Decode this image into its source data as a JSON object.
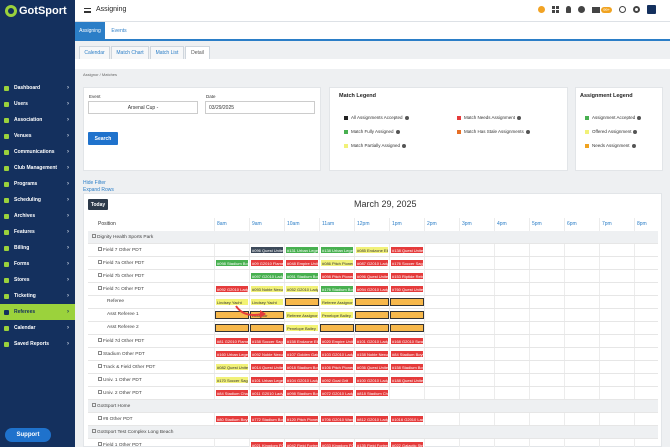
{
  "app": {
    "logo": "GotSport",
    "page_title": "Assigning",
    "mail_badge": "99+",
    "support": "Support"
  },
  "sidebar": {
    "items": [
      "Dashboard",
      "Users",
      "Association",
      "Venues",
      "Communications",
      "Club Management",
      "Programs",
      "Scheduling",
      "Archives",
      "Features",
      "Billing",
      "Forms",
      "Stores",
      "Ticketing",
      "Referees",
      "Calendar",
      "Saved Reports"
    ],
    "active": "Referees"
  },
  "tabs_main": [
    "Assigning",
    "Events"
  ],
  "tabs_sub": [
    "Calendar",
    "Match Chart",
    "Match List",
    "Detail"
  ],
  "breadcrumbs": "Assignor  /  Matches",
  "filter": {
    "event_label": "Event",
    "event_value": "Arsenal Cup -",
    "date_label": "Date",
    "date_value": "03/29/2025",
    "search_btn": "Search"
  },
  "match_legend": {
    "title": "Match Legend",
    "items": [
      {
        "label": "All Assignments Accepted",
        "color": "#222222"
      },
      {
        "label": "Match Needs Assignment",
        "color": "#e53b3b"
      },
      {
        "label": "Match Fully Assigned",
        "color": "#48b050"
      },
      {
        "label": "Match Has Stale Assignments",
        "color": "#e66f25"
      },
      {
        "label": "Match Partially Assigned",
        "color": "#f1f178"
      }
    ]
  },
  "assignment_legend": {
    "title": "Assignment Legend",
    "items": [
      {
        "label": "Assignment Accepted",
        "color": "#48b050"
      },
      {
        "label": "Offered Assignment",
        "color": "#f1f178"
      },
      {
        "label": "Needs Assignment",
        "color": "#f0a321"
      }
    ]
  },
  "links": {
    "hide_filter": "Hide Filter",
    "expand_rows": "Expand Rows"
  },
  "schedule": {
    "today_btn": "Today",
    "date_title": "March 29, 2025",
    "position_header": "Position",
    "times": [
      "8am",
      "9am",
      "10am",
      "11am",
      "12pm",
      "1pm",
      "2pm",
      "3pm",
      "4pm",
      "5pm",
      "6pm",
      "7pm",
      "8pm"
    ],
    "rows": [
      {
        "label": "Dignity Health Sports Park",
        "kind": "group"
      },
      {
        "label": "Field 7 Other PDT",
        "kind": "field"
      },
      {
        "label": "Field 7a Other PDT",
        "kind": "field"
      },
      {
        "label": "Field 7b Other PDT",
        "kind": "field"
      },
      {
        "label": "Field 7c Other PDT",
        "kind": "field"
      },
      {
        "label": "Referee",
        "kind": "role"
      },
      {
        "label": "Asst Referee 1",
        "kind": "role"
      },
      {
        "label": "Asst Referee 2",
        "kind": "role"
      },
      {
        "label": "Field 7d Other PDT",
        "kind": "field"
      },
      {
        "label": "Stadium Other PDT",
        "kind": "field"
      },
      {
        "label": "Track & Field Other PDT",
        "kind": "field"
      },
      {
        "label": "Univ. 1 Other PDT",
        "kind": "field"
      },
      {
        "label": "Univ. 2 Other PDT",
        "kind": "field"
      },
      {
        "label": "GotSport Home",
        "kind": "group"
      },
      {
        "label": "#8 Other PDT",
        "kind": "field"
      },
      {
        "label": "GotSport Test Complex Long Beach",
        "kind": "group"
      },
      {
        "label": "Field 1 Other PDT",
        "kind": "field"
      }
    ],
    "blocks": [
      {
        "row": 1,
        "slot": 1,
        "label": "#096 Quest United",
        "color": "#3d4a5a"
      },
      {
        "row": 1,
        "slot": 2,
        "label": "#131 Urban Legends",
        "color": "#48b050"
      },
      {
        "row": 1,
        "slot": 3,
        "label": "#138 Urban Legends",
        "color": "#48b050"
      },
      {
        "row": 1,
        "slot": 4,
        "label": "#085 Endzone Elite",
        "color": "#f1f178"
      },
      {
        "row": 1,
        "slot": 5,
        "label": "#138 Quest United",
        "color": "#e53b3b"
      },
      {
        "row": 2,
        "slot": 0,
        "label": "#098 Stadium Boys",
        "color": "#48b050"
      },
      {
        "row": 2,
        "slot": 1,
        "label": "#09 G2010 Flames",
        "color": "#e53b3b"
      },
      {
        "row": 2,
        "slot": 2,
        "label": "#048 Empire United",
        "color": "#e53b3b"
      },
      {
        "row": 2,
        "slot": 3,
        "label": "#086 Pitch Pioneers",
        "color": "#f1f178"
      },
      {
        "row": 2,
        "slot": 4,
        "label": "#087 G2010 Lady",
        "color": "#e53b3b"
      },
      {
        "row": 2,
        "slot": 5,
        "label": "#176 Soccer Saga",
        "color": "#e53b3b"
      },
      {
        "row": 3,
        "slot": 1,
        "label": "#097 G2010 Lady",
        "color": "#48b050"
      },
      {
        "row": 3,
        "slot": 2,
        "label": "#051 Stadium Boys",
        "color": "#48b050"
      },
      {
        "row": 3,
        "slot": 3,
        "label": "#098 Pitch Pioneers",
        "color": "#e53b3b"
      },
      {
        "row": 3,
        "slot": 4,
        "label": "#096 Quest United",
        "color": "#e53b3b"
      },
      {
        "row": 3,
        "slot": 5,
        "label": "#153 Riptide Rebels",
        "color": "#e53b3b"
      },
      {
        "row": 4,
        "slot": 0,
        "label": "#092 G2010 Lady",
        "color": "#e53b3b"
      },
      {
        "row": 4,
        "slot": 1,
        "label": "#093 Noble Nexus",
        "color": "#f1f178"
      },
      {
        "row": 4,
        "slot": 2,
        "label": "#052 G2010 Lady",
        "color": "#f1f178"
      },
      {
        "row": 4,
        "slot": 3,
        "label": "#176 Stadium Boys",
        "color": "#48b050"
      },
      {
        "row": 4,
        "slot": 4,
        "label": "#094 G2010 Lady",
        "color": "#e53b3b"
      },
      {
        "row": 4,
        "slot": 5,
        "label": "#760 Quest United",
        "color": "#e53b3b"
      },
      {
        "row": 5,
        "slot": 0,
        "label": "Lindsey Yacht",
        "color": "yellow"
      },
      {
        "row": 5,
        "slot": 1,
        "label": "Lindsey Yacht",
        "color": "yellow"
      },
      {
        "row": 5,
        "slot": 2,
        "label": "",
        "color": "orange"
      },
      {
        "row": 5,
        "slot": 3,
        "label": "Referee Assignor",
        "color": "yellow"
      },
      {
        "row": 5,
        "slot": 4,
        "label": "",
        "color": "orange"
      },
      {
        "row": 5,
        "slot": 5,
        "label": "",
        "color": "orange"
      },
      {
        "row": 6,
        "slot": 0,
        "label": "",
        "color": "orange"
      },
      {
        "row": 6,
        "slot": 1,
        "label": "Assignor",
        "color": "orange"
      },
      {
        "row": 6,
        "slot": 2,
        "label": "Referee Assignor",
        "color": "yellow"
      },
      {
        "row": 6,
        "slot": 3,
        "label": "Penelope Bailey",
        "color": "yellow"
      },
      {
        "row": 6,
        "slot": 4,
        "label": "",
        "color": "orange"
      },
      {
        "row": 6,
        "slot": 5,
        "label": "",
        "color": "orange"
      },
      {
        "row": 7,
        "slot": 0,
        "label": "",
        "color": "orange"
      },
      {
        "row": 7,
        "slot": 1,
        "label": "",
        "color": "orange"
      },
      {
        "row": 7,
        "slot": 2,
        "label": "Penelope Bailey",
        "color": "yellow"
      },
      {
        "row": 7,
        "slot": 3,
        "label": "",
        "color": "orange"
      },
      {
        "row": 7,
        "slot": 4,
        "label": "",
        "color": "orange"
      },
      {
        "row": 7,
        "slot": 5,
        "label": "",
        "color": "orange"
      },
      {
        "row": 8,
        "slot": 0,
        "label": "#81 G2010 Flames",
        "color": "#e53b3b"
      },
      {
        "row": 8,
        "slot": 1,
        "label": "#158 Soccer Saga",
        "color": "#e53b3b"
      },
      {
        "row": 8,
        "slot": 2,
        "label": "#158 Endzone Elite",
        "color": "#e53b3b"
      },
      {
        "row": 8,
        "slot": 3,
        "label": "#020 Empire United",
        "color": "#e53b3b"
      },
      {
        "row": 8,
        "slot": 4,
        "label": "#101 G2010 Lady",
        "color": "#e53b3b"
      },
      {
        "row": 8,
        "slot": 5,
        "label": "#168 G2010 Swan",
        "color": "#e53b3b"
      },
      {
        "row": 9,
        "slot": 0,
        "label": "#160 Urban Legends",
        "color": "#e53b3b"
      },
      {
        "row": 9,
        "slot": 1,
        "label": "#092 Noble Nexus",
        "color": "#e53b3b"
      },
      {
        "row": 9,
        "slot": 2,
        "label": "#107 Golden Gate",
        "color": "#e53b3b"
      },
      {
        "row": 9,
        "slot": 3,
        "label": "#103 G2010 Lady",
        "color": "#e53b3b"
      },
      {
        "row": 9,
        "slot": 4,
        "label": "#158 Noble Nexus",
        "color": "#e53b3b"
      },
      {
        "row": 9,
        "slot": 5,
        "label": "#84 Stadium Boys",
        "color": "#e53b3b"
      },
      {
        "row": 10,
        "slot": 0,
        "label": "#082 Quest United",
        "color": "#f1f178"
      },
      {
        "row": 10,
        "slot": 1,
        "label": "#014 Quest United",
        "color": "#e53b3b"
      },
      {
        "row": 10,
        "slot": 2,
        "label": "#018 Stadium Boys",
        "color": "#e53b3b"
      },
      {
        "row": 10,
        "slot": 3,
        "label": "#106 Pitch Pioneers",
        "color": "#e53b3b"
      },
      {
        "row": 10,
        "slot": 4,
        "label": "#036 Quest United",
        "color": "#e53b3b"
      },
      {
        "row": 10,
        "slot": 5,
        "label": "#158 Stadium Boys",
        "color": "#e53b3b"
      },
      {
        "row": 11,
        "slot": 0,
        "label": "#170 Soccer Saga",
        "color": "#f1f178"
      },
      {
        "row": 11,
        "slot": 1,
        "label": "#101 Urban Legends",
        "color": "#e53b3b"
      },
      {
        "row": 11,
        "slot": 2,
        "label": "#104 G2010 Lady",
        "color": "#e53b3b"
      },
      {
        "row": 11,
        "slot": 3,
        "label": "#092 Goal Grit",
        "color": "#e53b3b"
      },
      {
        "row": 11,
        "slot": 4,
        "label": "#100 G2010 Lady",
        "color": "#e53b3b"
      },
      {
        "row": 11,
        "slot": 5,
        "label": "#188 Quest United",
        "color": "#e53b3b"
      },
      {
        "row": 12,
        "slot": 0,
        "label": "#84 Stadium Chargers",
        "color": "#e53b3b"
      },
      {
        "row": 12,
        "slot": 1,
        "label": "#011 G2010 Lady",
        "color": "#e53b3b"
      },
      {
        "row": 12,
        "slot": 2,
        "label": "#098 Stadium Boys",
        "color": "#e53b3b"
      },
      {
        "row": 12,
        "slot": 3,
        "label": "#072 G2010 Lady",
        "color": "#e53b3b"
      },
      {
        "row": 12,
        "slot": 4,
        "label": "#818 Stadium Chargers",
        "color": "#e53b3b"
      },
      {
        "row": 14,
        "slot": 0,
        "label": "#80 Stadium Boys",
        "color": "#e53b3b"
      },
      {
        "row": 14,
        "slot": 1,
        "label": "#772 Stadium Boys",
        "color": "#e53b3b"
      },
      {
        "row": 14,
        "slot": 2,
        "label": "#120 Pitch Pioneers",
        "color": "#e53b3b"
      },
      {
        "row": 14,
        "slot": 3,
        "label": "#706 G2010 Waves",
        "color": "#e53b3b"
      },
      {
        "row": 14,
        "slot": 4,
        "label": "#812 G2010 Lady",
        "color": "#e53b3b"
      },
      {
        "row": 14,
        "slot": 5,
        "label": "#1016 G2010 Lady",
        "color": "#e53b3b"
      },
      {
        "row": 16,
        "slot": 1,
        "label": "#021 Kingdom FC",
        "color": "#e53b3b"
      },
      {
        "row": 16,
        "slot": 2,
        "label": "#042 Field Fortress",
        "color": "#e53b3b"
      },
      {
        "row": 16,
        "slot": 3,
        "label": "#033 Kingdom FC",
        "color": "#e53b3b"
      },
      {
        "row": 16,
        "slot": 4,
        "label": "#135 Field Fortress",
        "color": "#e53b3b"
      },
      {
        "row": 16,
        "slot": 5,
        "label": "#022 Galactic Strikers",
        "color": "#e53b3b"
      }
    ]
  }
}
